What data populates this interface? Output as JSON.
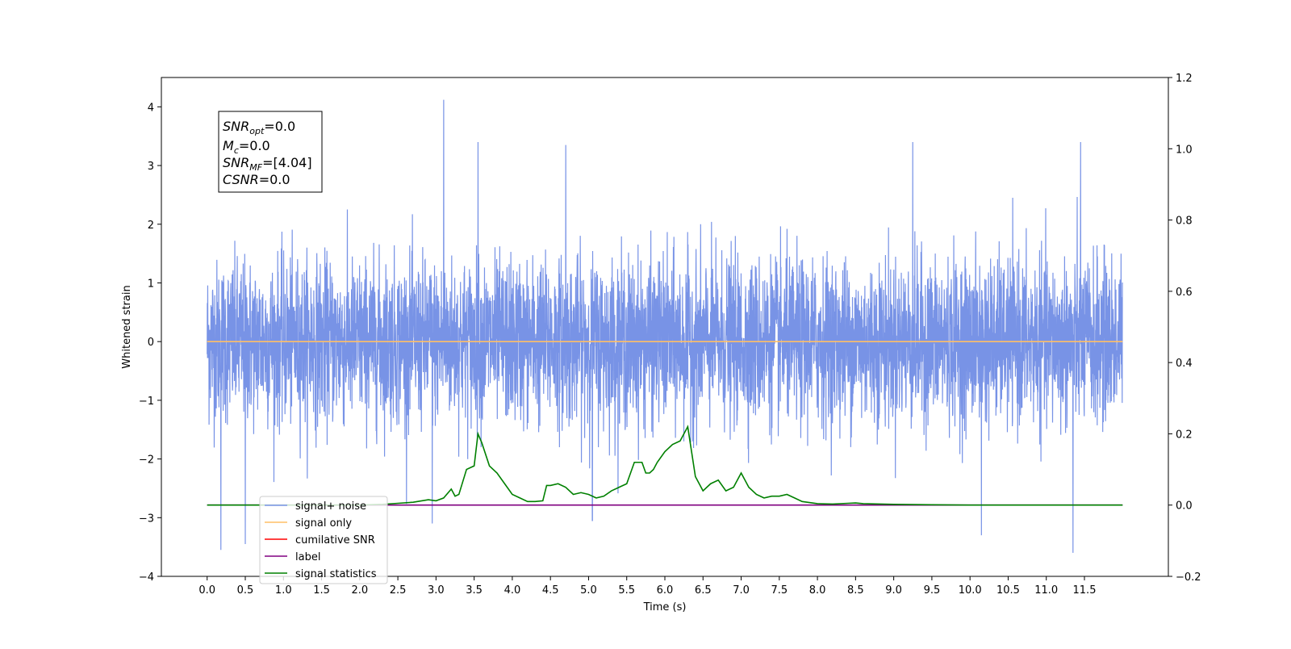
{
  "chart_data": {
    "type": "line",
    "xlabel": "Time (s)",
    "ylabel": "Whitened strain",
    "xlim": [
      -0.6,
      12.6
    ],
    "ylim": [
      -4,
      4.5
    ],
    "y2lim": [
      -0.2,
      1.2
    ],
    "xticks": [
      "0.0",
      "0.5",
      "1.0",
      "1.5",
      "2.0",
      "2.5",
      "3.0",
      "3.5",
      "4.0",
      "4.5",
      "5.0",
      "5.5",
      "6.0",
      "6.5",
      "7.0",
      "7.5",
      "8.0",
      "8.5",
      "9.0",
      "9.5",
      "10.0",
      "10.5",
      "11.0",
      "11.5"
    ],
    "yticks": [
      "−4",
      "−3",
      "−2",
      "−1",
      "0",
      "1",
      "2",
      "3",
      "4"
    ],
    "y2ticks": [
      "−0.2",
      "0.0",
      "0.2",
      "0.4",
      "0.6",
      "0.8",
      "1.0",
      "1.2"
    ],
    "grid": false,
    "legend_position": "lower-left",
    "annotation": [
      {
        "base": "SNR",
        "sub": "opt",
        "rest": "=0.0"
      },
      {
        "base": "M",
        "sub": "c",
        "rest": "=0.0"
      },
      {
        "base": "SNR",
        "sub": "MF",
        "rest": "=[4.04]"
      },
      {
        "base": "CSNR",
        "sub": "",
        "rest": "=0.0"
      }
    ],
    "series": [
      {
        "name": "signal+ noise",
        "axis": "left",
        "color": "#7893e6",
        "description": "whitened strain noise, approximately Gaussian, time span 0–12 s",
        "noise_std": 0.55,
        "time_range": [
          0,
          12
        ],
        "notable_peaks": [
          [
            3.1,
            4.12
          ],
          [
            3.55,
            3.4
          ],
          [
            4.7,
            3.35
          ],
          [
            9.25,
            3.4
          ],
          [
            11.45,
            3.4
          ],
          [
            0.18,
            -3.55
          ],
          [
            0.5,
            -3.45
          ],
          [
            11.35,
            -3.6
          ],
          [
            10.15,
            -3.3
          ],
          [
            2.95,
            -3.1
          ],
          [
            5.05,
            -3.05
          ]
        ]
      },
      {
        "name": "signal only",
        "axis": "left",
        "color": "#ffbf66",
        "x": [
          0,
          12
        ],
        "y": [
          0,
          0
        ]
      },
      {
        "name": "cumilative SNR",
        "axis": "right",
        "color": "#ff0000",
        "x": [],
        "y": []
      },
      {
        "name": "label",
        "axis": "right",
        "color": "#800080",
        "x": [
          0,
          12
        ],
        "y": [
          0,
          0
        ]
      },
      {
        "name": "signal statistics",
        "axis": "right",
        "color": "#008000",
        "x": [
          0,
          0.5,
          1,
          1.5,
          2,
          2.3,
          2.5,
          2.7,
          2.9,
          3.0,
          3.1,
          3.2,
          3.25,
          3.3,
          3.4,
          3.5,
          3.55,
          3.6,
          3.7,
          3.8,
          3.9,
          4.0,
          4.1,
          4.2,
          4.3,
          4.4,
          4.45,
          4.5,
          4.6,
          4.7,
          4.8,
          4.9,
          5.0,
          5.1,
          5.2,
          5.3,
          5.4,
          5.5,
          5.6,
          5.7,
          5.75,
          5.8,
          5.85,
          5.9,
          6.0,
          6.1,
          6.2,
          6.25,
          6.3,
          6.35,
          6.4,
          6.5,
          6.6,
          6.7,
          6.8,
          6.9,
          7.0,
          7.05,
          7.1,
          7.2,
          7.3,
          7.4,
          7.5,
          7.6,
          7.7,
          7.8,
          8.0,
          8.2,
          8.4,
          8.5,
          8.6,
          9.0,
          9.5,
          10,
          11,
          12
        ],
        "y": [
          0,
          0,
          0,
          0,
          0,
          0.002,
          0.005,
          0.008,
          0.015,
          0.012,
          0.02,
          0.045,
          0.025,
          0.03,
          0.1,
          0.11,
          0.2,
          0.175,
          0.11,
          0.09,
          0.06,
          0.03,
          0.02,
          0.01,
          0.01,
          0.012,
          0.055,
          0.055,
          0.06,
          0.05,
          0.03,
          0.035,
          0.03,
          0.02,
          0.025,
          0.04,
          0.05,
          0.06,
          0.12,
          0.12,
          0.09,
          0.09,
          0.1,
          0.12,
          0.15,
          0.17,
          0.18,
          0.2,
          0.22,
          0.15,
          0.08,
          0.04,
          0.06,
          0.07,
          0.04,
          0.05,
          0.09,
          0.07,
          0.05,
          0.03,
          0.02,
          0.025,
          0.025,
          0.03,
          0.02,
          0.01,
          0.004,
          0.003,
          0.005,
          0.006,
          0.004,
          0.002,
          0.001,
          0,
          0,
          0
        ]
      }
    ]
  }
}
